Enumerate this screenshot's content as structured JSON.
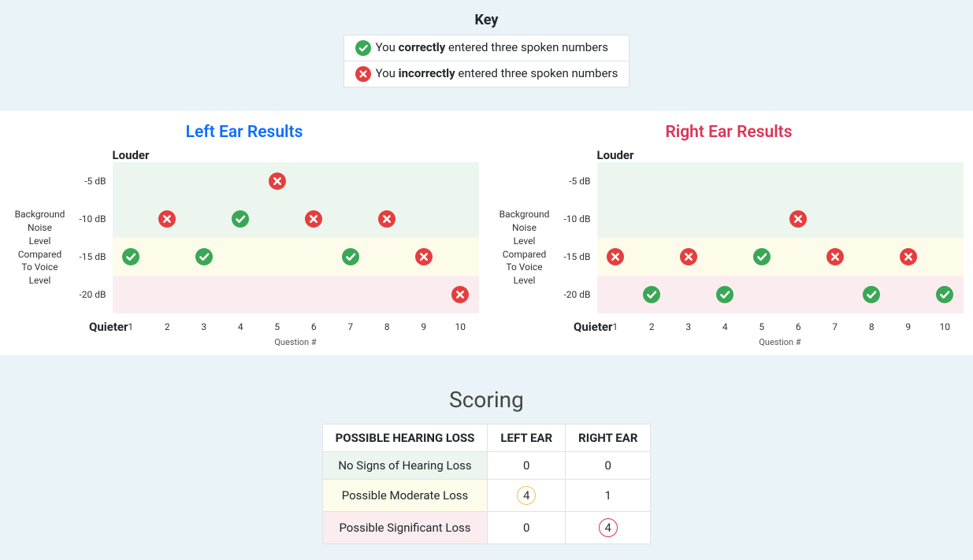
{
  "colors": {
    "page_bg_blue": "#eaf3f8",
    "page_bg_white": "#ffffff",
    "border": "#dee2e6",
    "left_title": "#0d6efd",
    "right_title": "#dc3557",
    "band_green": "#ecf6ee",
    "band_yellow": "#fdfbe9",
    "band_pink": "#fbedef",
    "icon_correct": "#3aa757",
    "icon_incorrect": "#e53e3e",
    "circle_yellow": "#f0c350",
    "circle_red": "#dc3545"
  },
  "key": {
    "title": "Key",
    "rows": [
      {
        "icon": "correct",
        "prefix": "You ",
        "bold": "correctly",
        "suffix": " entered three spoken numbers"
      },
      {
        "icon": "incorrect",
        "prefix": "You ",
        "bold": "incorrectly",
        "suffix": " entered three spoken numbers"
      }
    ]
  },
  "charts": {
    "y_axis_label": "Background Noise Level Compared To Voice Level",
    "louder_label": "Louder",
    "quieter_label": "Quieter",
    "x_axis_title": "Question #",
    "x_ticks": [
      "1",
      "2",
      "3",
      "4",
      "5",
      "6",
      "7",
      "8",
      "9",
      "10"
    ],
    "rows": [
      {
        "label": "-5 dB",
        "band": "band-green"
      },
      {
        "label": "-10 dB",
        "band": "band-green"
      },
      {
        "label": "-15 dB",
        "band": "band-yellow"
      },
      {
        "label": "-20 dB",
        "band": "band-pink"
      }
    ],
    "left": {
      "title": "Left Ear Results",
      "points": [
        {
          "q": 1,
          "row": "-15 dB",
          "type": "correct"
        },
        {
          "q": 2,
          "row": "-10 dB",
          "type": "incorrect"
        },
        {
          "q": 3,
          "row": "-15 dB",
          "type": "correct"
        },
        {
          "q": 4,
          "row": "-10 dB",
          "type": "correct"
        },
        {
          "q": 5,
          "row": "-5 dB",
          "type": "incorrect"
        },
        {
          "q": 6,
          "row": "-10 dB",
          "type": "incorrect"
        },
        {
          "q": 7,
          "row": "-15 dB",
          "type": "correct"
        },
        {
          "q": 8,
          "row": "-10 dB",
          "type": "incorrect"
        },
        {
          "q": 9,
          "row": "-15 dB",
          "type": "incorrect"
        },
        {
          "q": 10,
          "row": "-20 dB",
          "type": "incorrect"
        }
      ]
    },
    "right": {
      "title": "Right Ear Results",
      "points": [
        {
          "q": 1,
          "row": "-15 dB",
          "type": "incorrect"
        },
        {
          "q": 2,
          "row": "-20 dB",
          "type": "correct"
        },
        {
          "q": 3,
          "row": "-15 dB",
          "type": "incorrect"
        },
        {
          "q": 4,
          "row": "-20 dB",
          "type": "correct"
        },
        {
          "q": 5,
          "row": "-15 dB",
          "type": "correct"
        },
        {
          "q": 6,
          "row": "-10 dB",
          "type": "incorrect"
        },
        {
          "q": 7,
          "row": "-15 dB",
          "type": "incorrect"
        },
        {
          "q": 8,
          "row": "-20 dB",
          "type": "correct"
        },
        {
          "q": 9,
          "row": "-15 dB",
          "type": "incorrect"
        },
        {
          "q": 10,
          "row": "-20 dB",
          "type": "correct"
        }
      ]
    }
  },
  "scoring": {
    "title": "Scoring",
    "headers": [
      "POSSIBLE HEARING LOSS",
      "LEFT EAR",
      "RIGHT EAR"
    ],
    "rows": [
      {
        "label": "No Signs of Hearing Loss",
        "bg": "#ecf6ee",
        "left": {
          "value": "0",
          "circle": null
        },
        "right": {
          "value": "0",
          "circle": null
        }
      },
      {
        "label": "Possible Moderate Loss",
        "bg": "#fdfbe9",
        "left": {
          "value": "4",
          "circle": "#f0c350"
        },
        "right": {
          "value": "1",
          "circle": null
        }
      },
      {
        "label": "Possible Significant Loss",
        "bg": "#fbedef",
        "left": {
          "value": "0",
          "circle": null
        },
        "right": {
          "value": "4",
          "circle": "#dc3545"
        }
      }
    ]
  }
}
